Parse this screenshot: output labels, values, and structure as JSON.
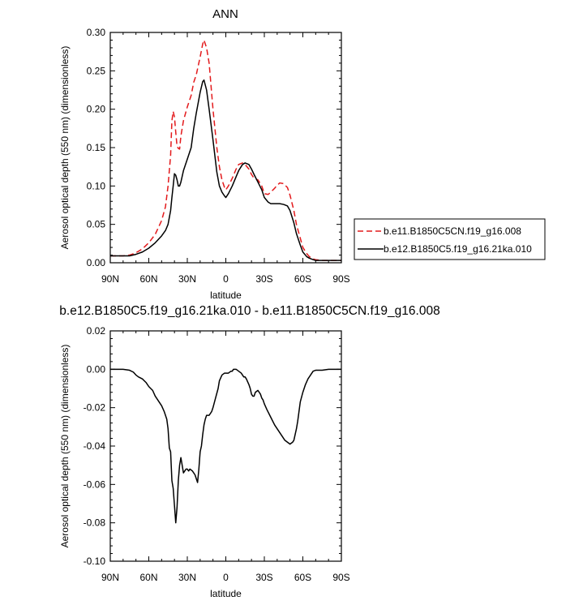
{
  "chart_data": [
    {
      "type": "line",
      "title": "ANN",
      "xlabel": "latitude",
      "ylabel": "Aerosol optical depth (550 nm) (dimensionless)",
      "xlim": [
        90,
        -90
      ],
      "ylim": [
        0.0,
        0.3
      ],
      "x_ticks": [
        90,
        60,
        30,
        0,
        -30,
        -60,
        -90
      ],
      "x_tick_labels": [
        "90N",
        "60N",
        "30N",
        "0",
        "30S",
        "60S",
        "90S"
      ],
      "y_ticks": [
        0.0,
        0.05,
        0.1,
        0.15,
        0.2,
        0.25,
        0.3
      ],
      "y_tick_labels": [
        "0.00",
        "0.05",
        "0.10",
        "0.15",
        "0.20",
        "0.25",
        "0.30"
      ],
      "grid": false,
      "legend_position": "right",
      "series": [
        {
          "name": "b.e11.B1850C5CN.f19_g16.008",
          "color": "#e31a1c",
          "dash": "dashed",
          "x": [
            90,
            80,
            75,
            70,
            65,
            60,
            55,
            50,
            47,
            45,
            43,
            42,
            41,
            40,
            39,
            38,
            37,
            36,
            35,
            33,
            30,
            27,
            25,
            23,
            20,
            18,
            17,
            15,
            13,
            10,
            7,
            5,
            3,
            1,
            0,
            -2,
            -5,
            -8,
            -10,
            -13,
            -15,
            -18,
            -20,
            -22,
            -25,
            -28,
            -30,
            -33,
            -35,
            -38,
            -40,
            -42,
            -45,
            -48,
            -50,
            -53,
            -55,
            -58,
            -60,
            -63,
            -65,
            -68,
            -70,
            -75,
            -80,
            -90
          ],
          "y": [
            0.009,
            0.009,
            0.01,
            0.013,
            0.018,
            0.026,
            0.037,
            0.055,
            0.073,
            0.1,
            0.14,
            0.185,
            0.197,
            0.19,
            0.17,
            0.152,
            0.149,
            0.148,
            0.165,
            0.185,
            0.203,
            0.218,
            0.235,
            0.245,
            0.268,
            0.285,
            0.29,
            0.28,
            0.26,
            0.2,
            0.15,
            0.125,
            0.108,
            0.098,
            0.095,
            0.1,
            0.11,
            0.122,
            0.128,
            0.13,
            0.128,
            0.122,
            0.115,
            0.11,
            0.108,
            0.1,
            0.09,
            0.089,
            0.092,
            0.097,
            0.101,
            0.104,
            0.103,
            0.098,
            0.088,
            0.068,
            0.05,
            0.032,
            0.02,
            0.012,
            0.008,
            0.005,
            0.004,
            0.003,
            0.003,
            0.003
          ]
        },
        {
          "name": "b.e12.B1850C5.f19_g16.21ka.010",
          "color": "#000000",
          "dash": "solid",
          "x": [
            90,
            80,
            75,
            70,
            65,
            60,
            55,
            50,
            47,
            45,
            43,
            42,
            41,
            40,
            39,
            38,
            37,
            36,
            35,
            33,
            30,
            27,
            25,
            23,
            20,
            18,
            17,
            15,
            13,
            10,
            7,
            5,
            3,
            1,
            0,
            -2,
            -5,
            -8,
            -10,
            -13,
            -15,
            -18,
            -20,
            -22,
            -25,
            -28,
            -30,
            -33,
            -35,
            -38,
            -40,
            -42,
            -45,
            -48,
            -50,
            -53,
            -55,
            -58,
            -60,
            -63,
            -65,
            -68,
            -70,
            -75,
            -80,
            -90
          ],
          "y": [
            0.009,
            0.009,
            0.009,
            0.011,
            0.014,
            0.019,
            0.026,
            0.035,
            0.042,
            0.05,
            0.068,
            0.085,
            0.1,
            0.116,
            0.114,
            0.108,
            0.1,
            0.1,
            0.105,
            0.12,
            0.135,
            0.15,
            0.175,
            0.195,
            0.222,
            0.236,
            0.238,
            0.225,
            0.2,
            0.16,
            0.118,
            0.1,
            0.092,
            0.087,
            0.085,
            0.09,
            0.1,
            0.112,
            0.12,
            0.128,
            0.13,
            0.128,
            0.122,
            0.115,
            0.105,
            0.095,
            0.085,
            0.079,
            0.077,
            0.077,
            0.077,
            0.077,
            0.076,
            0.074,
            0.068,
            0.052,
            0.038,
            0.023,
            0.014,
            0.008,
            0.006,
            0.004,
            0.003,
            0.003,
            0.003,
            0.003
          ]
        }
      ]
    },
    {
      "type": "line",
      "title": "b.e12.B1850C5.f19_g16.21ka.010 - b.e11.B1850C5CN.f19_g16.008",
      "xlabel": "latitude",
      "ylabel": "Aerosol optical depth (550 nm) (dimensionless)",
      "xlim": [
        90,
        -90
      ],
      "ylim": [
        -0.1,
        0.02
      ],
      "x_ticks": [
        90,
        60,
        30,
        0,
        -30,
        -60,
        -90
      ],
      "x_tick_labels": [
        "90N",
        "60N",
        "30N",
        "0",
        "30S",
        "60S",
        "90S"
      ],
      "y_ticks": [
        -0.1,
        -0.08,
        -0.06,
        -0.04,
        -0.02,
        0.0,
        0.02
      ],
      "y_tick_labels": [
        "-0.10",
        "-0.08",
        "-0.06",
        "-0.04",
        "-0.02",
        "0.00",
        "0.02"
      ],
      "grid": false,
      "series": [
        {
          "color": "#000000",
          "dash": "solid",
          "x": [
            90,
            80,
            75,
            72,
            70,
            68,
            65,
            62,
            60,
            57,
            55,
            52,
            50,
            48,
            46,
            45,
            44,
            43,
            42,
            41,
            40,
            39,
            38,
            37,
            36,
            35,
            34,
            33,
            31,
            30,
            29,
            28,
            26,
            24,
            22,
            21,
            20,
            19,
            18,
            17,
            16,
            15,
            13,
            11,
            10,
            8,
            6,
            5,
            3,
            1,
            0,
            -2,
            -4,
            -5,
            -6,
            -8,
            -10,
            -12,
            -13,
            -14,
            -15,
            -16,
            -18,
            -19,
            -20,
            -21,
            -22,
            -23,
            -25,
            -27,
            -28,
            -29,
            -30,
            -32,
            -35,
            -38,
            -40,
            -42,
            -44,
            -46,
            -48,
            -50,
            -52,
            -53,
            -54,
            -55,
            -56,
            -57,
            -58,
            -60,
            -62,
            -64,
            -66,
            -68,
            -70,
            -72,
            -75,
            -80,
            -90
          ],
          "y": [
            0.0,
            0.0,
            -0.0005,
            -0.0015,
            -0.003,
            -0.004,
            -0.005,
            -0.007,
            -0.009,
            -0.011,
            -0.014,
            -0.017,
            -0.019,
            -0.022,
            -0.026,
            -0.031,
            -0.041,
            -0.043,
            -0.058,
            -0.062,
            -0.071,
            -0.08,
            -0.072,
            -0.058,
            -0.05,
            -0.046,
            -0.05,
            -0.054,
            -0.052,
            -0.052,
            -0.053,
            -0.052,
            -0.053,
            -0.055,
            -0.059,
            -0.052,
            -0.043,
            -0.04,
            -0.034,
            -0.029,
            -0.026,
            -0.024,
            -0.024,
            -0.022,
            -0.02,
            -0.015,
            -0.01,
            -0.006,
            -0.003,
            -0.002,
            -0.002,
            -0.002,
            -0.001,
            -0.001,
            0.0,
            0.0,
            -0.001,
            -0.002,
            -0.003,
            -0.004,
            -0.004,
            -0.005,
            -0.008,
            -0.01,
            -0.013,
            -0.014,
            -0.014,
            -0.012,
            -0.011,
            -0.013,
            -0.015,
            -0.016,
            -0.018,
            -0.021,
            -0.025,
            -0.029,
            -0.031,
            -0.033,
            -0.035,
            -0.037,
            -0.038,
            -0.039,
            -0.038,
            -0.037,
            -0.034,
            -0.031,
            -0.027,
            -0.022,
            -0.017,
            -0.012,
            -0.008,
            -0.005,
            -0.003,
            -0.001,
            -0.0005,
            -0.0005,
            -0.0005,
            0.0,
            0.0
          ]
        }
      ]
    }
  ]
}
